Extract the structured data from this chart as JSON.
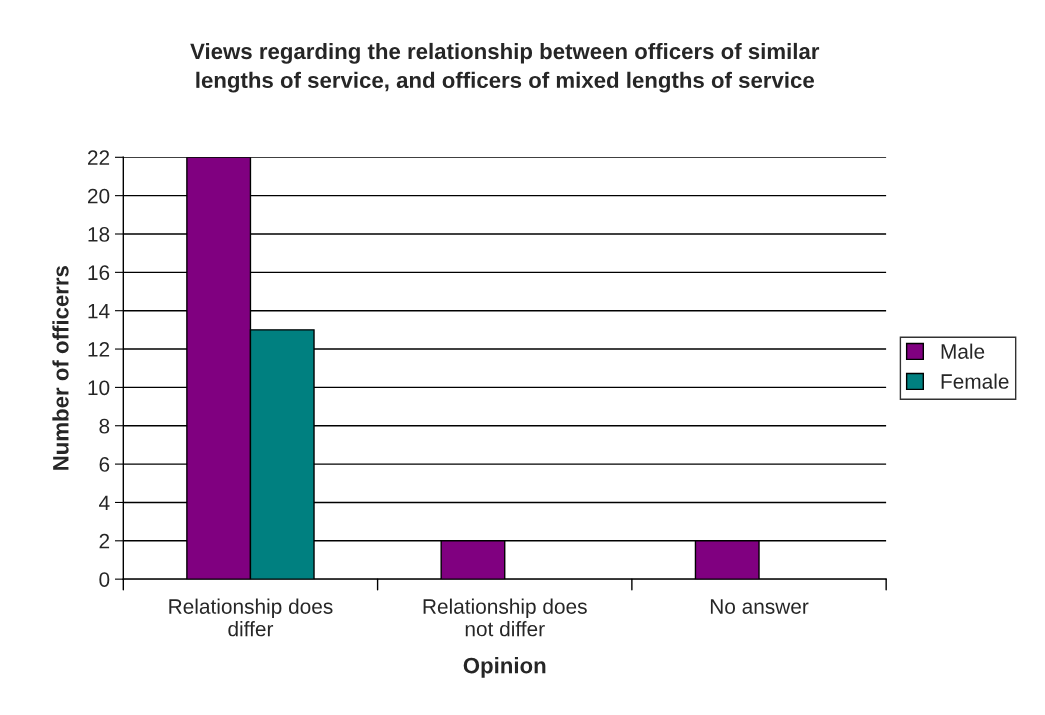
{
  "chart_data": {
    "type": "bar",
    "title": "Views regarding the relationship between officers of similar\nlengths of service, and officers of mixed lengths of service",
    "xlabel": "Opinion",
    "ylabel": "Number of officerrs",
    "categories": [
      "Relationship does\ndiffer",
      "Relationship does\nnot differ",
      "No answer"
    ],
    "series": [
      {
        "name": "Male",
        "color": "#800080",
        "values": [
          22,
          2,
          2
        ]
      },
      {
        "name": "Female",
        "color": "#008080",
        "values": [
          13,
          null,
          null
        ]
      }
    ],
    "ylim": [
      0,
      22
    ],
    "yticks": [
      0,
      2,
      4,
      6,
      8,
      10,
      12,
      14,
      16,
      18,
      20,
      22
    ],
    "grid": "y",
    "legend": "right"
  }
}
